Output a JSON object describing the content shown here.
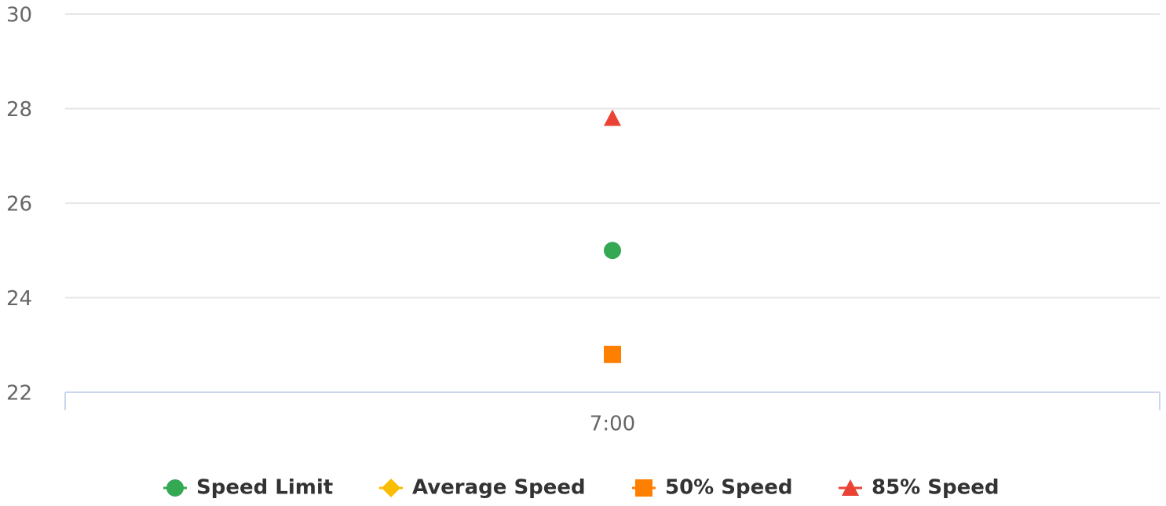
{
  "chart_data": {
    "type": "line",
    "categories": [
      "7:00"
    ],
    "series": [
      {
        "name": "Speed Limit",
        "color": "#34a853",
        "marker": "circle",
        "values": [
          25
        ]
      },
      {
        "name": "Average Speed",
        "color": "#fbbc04",
        "marker": "diamond",
        "values": [
          null
        ]
      },
      {
        "name": "50% Speed",
        "color": "#ff8000",
        "marker": "square",
        "values": [
          22.8
        ]
      },
      {
        "name": "85% Speed",
        "color": "#ea4335",
        "marker": "triangle",
        "values": [
          27.8
        ]
      }
    ],
    "ylim": [
      22,
      30
    ],
    "yticks": [
      22,
      24,
      26,
      28,
      30
    ],
    "grid": true,
    "legend": "bottom"
  }
}
